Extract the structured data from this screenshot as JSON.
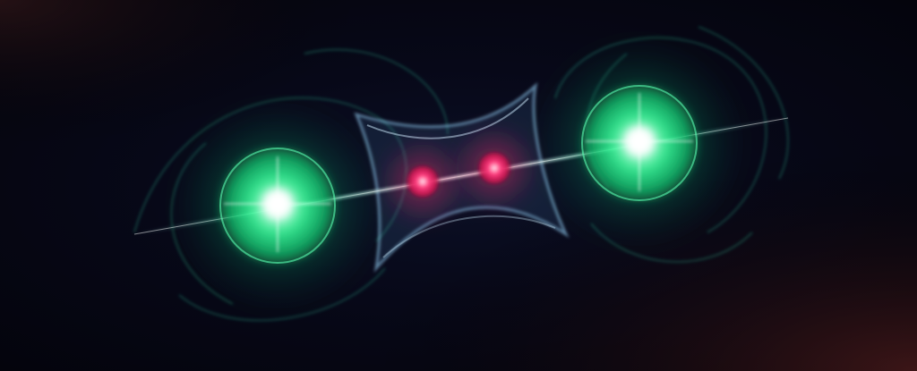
{
  "scene": {
    "subject": "two-glowing-spheres-linked-through-cavity",
    "colors": {
      "background": "#05040d",
      "sphere_glow": "#2dff9a",
      "sphere_core": "#e9fff6",
      "particle": "#ff2a6a",
      "cavity": "#7fd0ff",
      "vignette_edge": "#2a0f14"
    }
  }
}
